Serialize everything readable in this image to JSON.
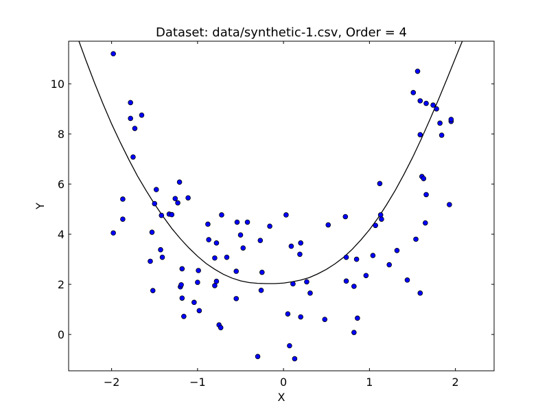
{
  "chart_data": {
    "type": "scatter",
    "title": "Dataset: data/synthetic-1.csv, Order = 4",
    "xlabel": "X",
    "ylabel": "Y",
    "xlim": [
      -2.5,
      2.45
    ],
    "ylim": [
      -1.45,
      11.7
    ],
    "x_ticks": [
      -2,
      -1,
      0,
      1,
      2
    ],
    "x_tick_labels": [
      "−2",
      "−1",
      "0",
      "1",
      "2"
    ],
    "y_ticks": [
      0,
      2,
      4,
      6,
      8,
      10
    ],
    "y_tick_labels": [
      "0",
      "2",
      "4",
      "6",
      "8",
      "10"
    ],
    "grid": false,
    "colors": {
      "points": "#0000ff",
      "point_edge": "#000000",
      "curve": "#000000",
      "axes": "#000000"
    },
    "series": [
      {
        "kind": "points",
        "points": [
          [
            -1.98,
            11.2
          ],
          [
            -1.98,
            4.05
          ],
          [
            -1.87,
            5.4
          ],
          [
            -1.87,
            4.6
          ],
          [
            -1.78,
            9.25
          ],
          [
            -1.78,
            8.62
          ],
          [
            -1.75,
            7.08
          ],
          [
            -1.73,
            8.22
          ],
          [
            -1.65,
            8.75
          ],
          [
            -1.55,
            2.92
          ],
          [
            -1.53,
            4.08
          ],
          [
            -1.52,
            1.75
          ],
          [
            -1.5,
            5.22
          ],
          [
            -1.48,
            5.78
          ],
          [
            -1.43,
            3.38
          ],
          [
            -1.42,
            4.75
          ],
          [
            -1.41,
            3.08
          ],
          [
            -1.33,
            4.8
          ],
          [
            -1.3,
            4.78
          ],
          [
            -1.26,
            5.42
          ],
          [
            -1.23,
            5.25
          ],
          [
            -1.21,
            6.08
          ],
          [
            -1.2,
            1.9
          ],
          [
            -1.19,
            1.98
          ],
          [
            -1.18,
            2.62
          ],
          [
            -1.18,
            1.45
          ],
          [
            -1.16,
            0.72
          ],
          [
            -1.11,
            5.45
          ],
          [
            -1.04,
            1.28
          ],
          [
            -1.0,
            2.08
          ],
          [
            -0.99,
            2.55
          ],
          [
            -0.98,
            0.95
          ],
          [
            -0.88,
            4.4
          ],
          [
            -0.87,
            3.78
          ],
          [
            -0.8,
            3.05
          ],
          [
            -0.8,
            1.95
          ],
          [
            -0.78,
            3.65
          ],
          [
            -0.78,
            2.12
          ],
          [
            -0.75,
            0.38
          ],
          [
            -0.73,
            0.27
          ],
          [
            -0.72,
            4.77
          ],
          [
            -0.66,
            3.08
          ],
          [
            -0.55,
            2.52
          ],
          [
            -0.55,
            1.43
          ],
          [
            -0.54,
            4.48
          ],
          [
            -0.5,
            3.97
          ],
          [
            -0.47,
            3.45
          ],
          [
            -0.42,
            4.48
          ],
          [
            -0.3,
            -0.88
          ],
          [
            -0.27,
            3.75
          ],
          [
            -0.25,
            2.48
          ],
          [
            -0.26,
            1.76
          ],
          [
            -0.16,
            4.32
          ],
          [
            0.03,
            4.77
          ],
          [
            0.05,
            0.82
          ],
          [
            0.07,
            -0.45
          ],
          [
            0.09,
            3.52
          ],
          [
            0.11,
            2.02
          ],
          [
            0.13,
            -0.97
          ],
          [
            0.19,
            3.2
          ],
          [
            0.2,
            3.65
          ],
          [
            0.2,
            0.7
          ],
          [
            0.27,
            2.1
          ],
          [
            0.31,
            1.65
          ],
          [
            0.48,
            0.6
          ],
          [
            0.52,
            4.37
          ],
          [
            0.72,
            4.7
          ],
          [
            0.73,
            3.08
          ],
          [
            0.73,
            2.13
          ],
          [
            0.82,
            1.92
          ],
          [
            0.82,
            0.08
          ],
          [
            0.85,
            3.0
          ],
          [
            0.86,
            0.65
          ],
          [
            0.96,
            2.35
          ],
          [
            1.04,
            3.15
          ],
          [
            1.07,
            4.35
          ],
          [
            1.12,
            6.02
          ],
          [
            1.13,
            4.77
          ],
          [
            1.14,
            4.6
          ],
          [
            1.23,
            2.78
          ],
          [
            1.32,
            3.35
          ],
          [
            1.44,
            2.17
          ],
          [
            1.51,
            9.65
          ],
          [
            1.54,
            3.8
          ],
          [
            1.56,
            10.5
          ],
          [
            1.59,
            9.32
          ],
          [
            1.59,
            7.97
          ],
          [
            1.59,
            1.65
          ],
          [
            1.61,
            6.3
          ],
          [
            1.63,
            6.22
          ],
          [
            1.65,
            4.45
          ],
          [
            1.66,
            9.22
          ],
          [
            1.66,
            5.58
          ],
          [
            1.74,
            9.15
          ],
          [
            1.78,
            9.0
          ],
          [
            1.82,
            8.43
          ],
          [
            1.84,
            7.95
          ],
          [
            1.93,
            5.18
          ],
          [
            1.95,
            8.5
          ],
          [
            1.95,
            8.58
          ]
        ]
      },
      {
        "kind": "fit-curve",
        "order": 4,
        "points": [
          [
            -2.38,
            11.7
          ],
          [
            -2.3,
            10.95
          ],
          [
            -2.2,
            10.05
          ],
          [
            -2.1,
            9.2
          ],
          [
            -2.0,
            8.4
          ],
          [
            -1.9,
            7.67
          ],
          [
            -1.8,
            6.98
          ],
          [
            -1.7,
            6.33
          ],
          [
            -1.6,
            5.75
          ],
          [
            -1.5,
            5.2
          ],
          [
            -1.4,
            4.7
          ],
          [
            -1.3,
            4.23
          ],
          [
            -1.2,
            3.82
          ],
          [
            -1.1,
            3.45
          ],
          [
            -1.0,
            3.12
          ],
          [
            -0.9,
            2.83
          ],
          [
            -0.8,
            2.6
          ],
          [
            -0.7,
            2.4
          ],
          [
            -0.6,
            2.25
          ],
          [
            -0.5,
            2.14
          ],
          [
            -0.4,
            2.07
          ],
          [
            -0.3,
            2.04
          ],
          [
            -0.2,
            2.03
          ],
          [
            -0.1,
            2.03
          ],
          [
            0.0,
            2.05
          ],
          [
            0.1,
            2.1
          ],
          [
            0.2,
            2.17
          ],
          [
            0.3,
            2.27
          ],
          [
            0.4,
            2.42
          ],
          [
            0.5,
            2.6
          ],
          [
            0.6,
            2.82
          ],
          [
            0.7,
            3.08
          ],
          [
            0.8,
            3.4
          ],
          [
            0.9,
            3.77
          ],
          [
            1.0,
            4.18
          ],
          [
            1.1,
            4.65
          ],
          [
            1.2,
            5.18
          ],
          [
            1.3,
            5.75
          ],
          [
            1.4,
            6.38
          ],
          [
            1.5,
            7.05
          ],
          [
            1.6,
            7.78
          ],
          [
            1.7,
            8.55
          ],
          [
            1.8,
            9.35
          ],
          [
            1.9,
            10.18
          ],
          [
            2.0,
            11.03
          ],
          [
            2.05,
            11.45
          ],
          [
            2.08,
            11.7
          ]
        ]
      }
    ]
  }
}
